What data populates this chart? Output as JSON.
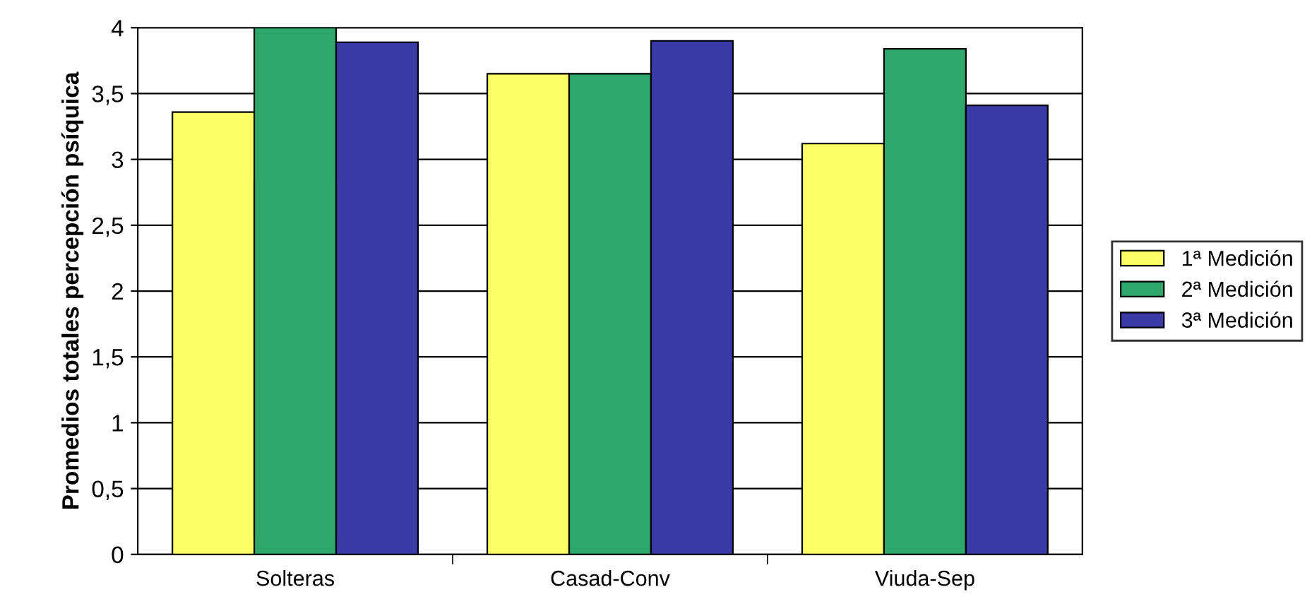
{
  "chart_data": {
    "type": "bar",
    "ylabel": "Promedios totales percepción psíquica",
    "categories": [
      "Solteras",
      "Casad-Conv",
      "Viuda-Sep"
    ],
    "series": [
      {
        "name": "1ª Medición",
        "color": "#ffff66",
        "values": [
          3.36,
          3.65,
          3.12
        ]
      },
      {
        "name": "2ª Medición",
        "color": "#2ea86a",
        "values": [
          4.0,
          3.65,
          3.84
        ]
      },
      {
        "name": "3ª Medición",
        "color": "#3a3aa8",
        "values": [
          3.89,
          3.9,
          3.41
        ]
      }
    ],
    "ylim": [
      0,
      4
    ],
    "yticks": [
      0,
      {
        "value": 0.5,
        "label": "0,5"
      },
      1,
      {
        "value": 1.5,
        "label": "1,5"
      },
      2,
      {
        "value": 2.5,
        "label": "2,5"
      },
      3,
      {
        "value": 3.5,
        "label": "3,5"
      },
      4
    ],
    "grid": "y",
    "legend": "right"
  }
}
